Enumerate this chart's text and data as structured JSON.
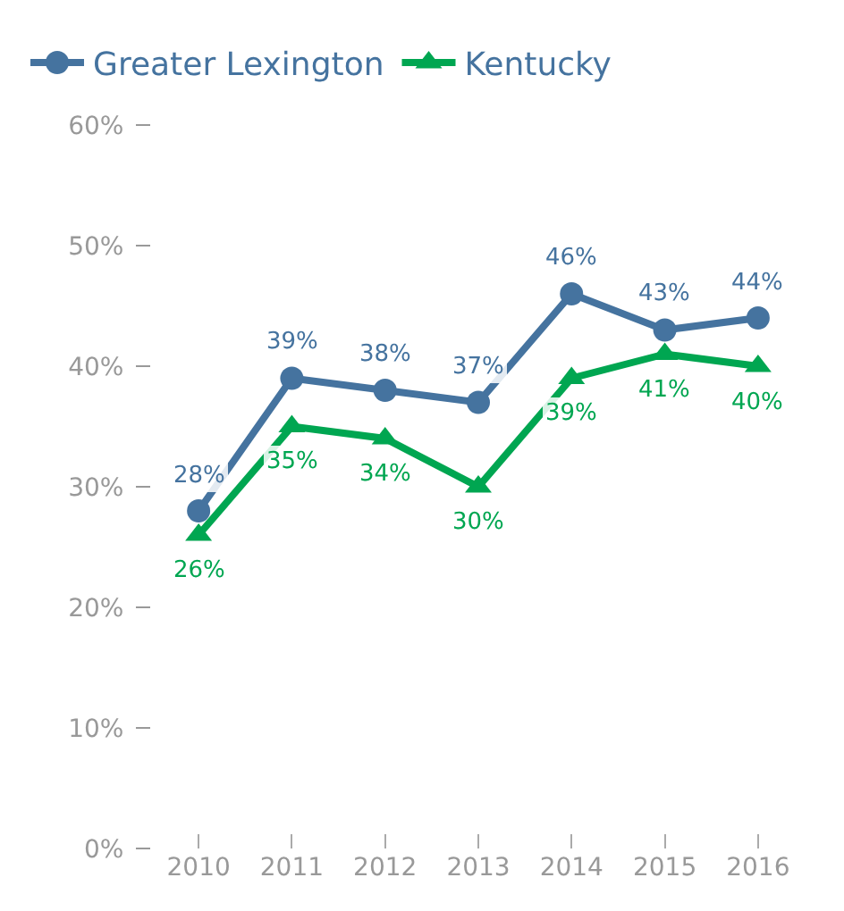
{
  "chart_data": {
    "type": "line",
    "categories": [
      "2010",
      "2011",
      "2012",
      "2013",
      "2014",
      "2015",
      "2016"
    ],
    "series": [
      {
        "name": "Greater Lexington",
        "color": "#45739f",
        "marker": "circle",
        "values": [
          28,
          39,
          38,
          37,
          46,
          43,
          44
        ],
        "value_labels": [
          "28%",
          "39%",
          "38%",
          "37%",
          "46%",
          "43%",
          "44%"
        ]
      },
      {
        "name": "Kentucky",
        "color": "#00a651",
        "marker": "triangle",
        "values": [
          26,
          35,
          34,
          30,
          39,
          41,
          40
        ],
        "value_labels": [
          "26%",
          "35%",
          "34%",
          "30%",
          "39%",
          "41%",
          "40%"
        ]
      }
    ],
    "ylim": [
      0,
      60
    ],
    "yticks": [
      {
        "value": 0,
        "label": "0%"
      },
      {
        "value": 10,
        "label": "10%"
      },
      {
        "value": 20,
        "label": "20%"
      },
      {
        "value": 30,
        "label": "30%"
      },
      {
        "value": 40,
        "label": "40%"
      },
      {
        "value": 50,
        "label": "50%"
      },
      {
        "value": 60,
        "label": "60%"
      }
    ],
    "legend": "top",
    "line_style": "solid"
  }
}
